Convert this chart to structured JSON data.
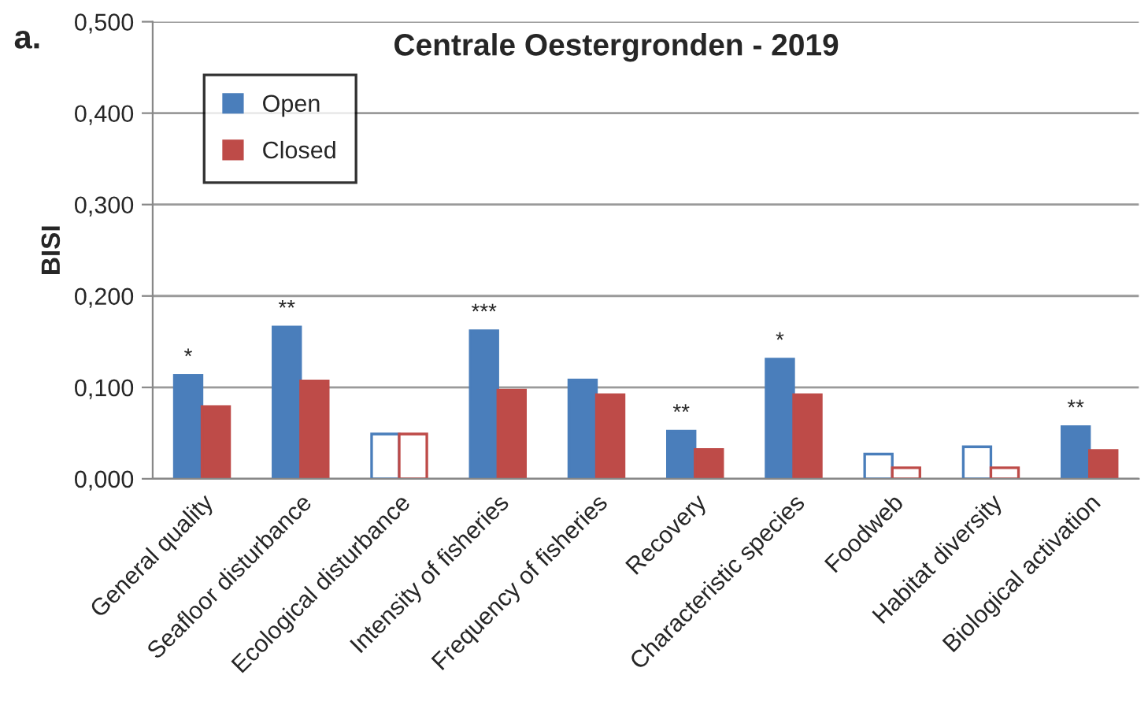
{
  "chart_data": {
    "type": "bar",
    "title": "Centrale Oestergronden - 2019",
    "ylabel": "BISI",
    "categories": [
      "General quality",
      "Seafloor disturbance",
      "Ecological disturbance",
      "Intensity of fisheries",
      "Frequency of fisheries",
      "Recovery",
      "Characteristic species",
      "Foodweb",
      "Habitat diversity",
      "Biological activation"
    ],
    "series": [
      {
        "name": "Open",
        "color": "#4a7ebb",
        "colors": [
          "#4a7ebb",
          "#4a7ebb",
          "#ffffff",
          "#4a7ebb",
          "#4a7ebb",
          "#4a7ebb",
          "#4a7ebb",
          "#ffffff",
          "#ffffff",
          "#4a7ebb"
        ],
        "values": [
          0.113,
          0.166,
          0.049,
          0.162,
          0.108,
          0.052,
          0.131,
          0.027,
          0.035,
          0.057
        ],
        "value_labels": [
          "*",
          "**",
          null,
          "***",
          null,
          "**",
          "*",
          null,
          null,
          "**"
        ]
      },
      {
        "name": "Closed",
        "color": "#be4b48",
        "colors": [
          "#be4b48",
          "#be4b48",
          "#ffffff",
          "#be4b48",
          "#be4b48",
          "#be4b48",
          "#be4b48",
          "#ffffff",
          "#ffffff",
          "#be4b48"
        ],
        "values": [
          0.079,
          0.107,
          0.049,
          0.097,
          0.092,
          0.032,
          0.092,
          0.012,
          0.012,
          0.031
        ]
      }
    ],
    "ylim": [
      0,
      0.5
    ],
    "yticks": [
      {
        "value": 0,
        "label": "0,000"
      },
      {
        "value": 0.1,
        "label": "0,100"
      },
      {
        "value": 0.2,
        "label": "0,200"
      },
      {
        "value": 0.3,
        "label": "0,300"
      },
      {
        "value": 0.4,
        "label": "0,400"
      },
      {
        "value": 0.5,
        "label": "0,500"
      }
    ],
    "grid": "y",
    "legend": "top left",
    "annotations": [
      "a."
    ]
  }
}
